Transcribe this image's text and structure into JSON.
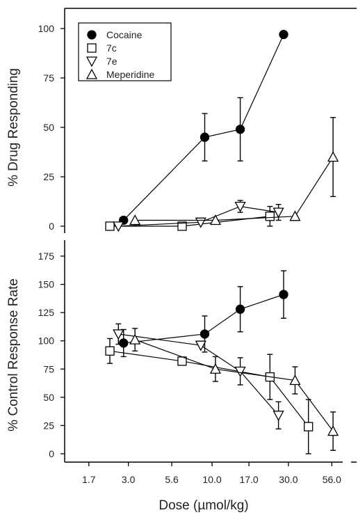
{
  "chart_data": [
    {
      "type": "scatter",
      "panel": "top",
      "ylabel": "% Drug Responding",
      "xlabel": "",
      "xscale": "log",
      "xlim": [
        1.7,
        56.0
      ],
      "ylim": [
        0,
        100
      ],
      "yticks": [
        0,
        25,
        50,
        75,
        100
      ],
      "legend": {
        "placement": "top-left",
        "entries": [
          {
            "name": "Cocaine",
            "marker": "circle",
            "filled": true
          },
          {
            "name": "7c",
            "marker": "square",
            "filled": false
          },
          {
            "name": "7e",
            "marker": "triangle-down",
            "filled": false
          },
          {
            "name": "Meperidine",
            "marker": "triangle-up",
            "filled": false
          }
        ]
      },
      "series": [
        {
          "name": "Cocaine",
          "marker": "circle",
          "filled": true,
          "points": [
            {
              "x": 2.8,
              "y": 3
            },
            {
              "x": 9.0,
              "y": 45,
              "err": 12
            },
            {
              "x": 15.0,
              "y": 49,
              "err": 16
            },
            {
              "x": 28.0,
              "y": 97
            }
          ]
        },
        {
          "name": "7c",
          "marker": "square",
          "filled": false,
          "points": [
            {
              "x": 2.3,
              "y": 0
            },
            {
              "x": 6.5,
              "y": 0
            },
            {
              "x": 23.0,
              "y": 5,
              "err": 5
            }
          ]
        },
        {
          "name": "7e",
          "marker": "triangle-down",
          "filled": false,
          "points": [
            {
              "x": 2.6,
              "y": 0
            },
            {
              "x": 8.5,
              "y": 2
            },
            {
              "x": 15.0,
              "y": 10,
              "err": 3
            },
            {
              "x": 26.0,
              "y": 7,
              "err": 4
            }
          ]
        },
        {
          "name": "Meperidine",
          "marker": "triangle-up",
          "filled": false,
          "points": [
            {
              "x": 3.3,
              "y": 3
            },
            {
              "x": 10.5,
              "y": 3
            },
            {
              "x": 33.0,
              "y": 5
            },
            {
              "x": 57.0,
              "y": 35,
              "err": 20
            }
          ]
        }
      ]
    },
    {
      "type": "scatter",
      "panel": "bottom",
      "ylabel": "% Control Response Rate",
      "xlabel": "Dose (µmol/kg)",
      "xscale": "log",
      "xlim": [
        1.7,
        56.0
      ],
      "ylim": [
        0,
        175
      ],
      "yticks": [
        0,
        25,
        50,
        75,
        100,
        125,
        150,
        175
      ],
      "xticks": [
        {
          "v": 1.7,
          "label": "1.7"
        },
        {
          "v": 3.0,
          "label": "3.0"
        },
        {
          "v": 5.6,
          "label": "5.6"
        },
        {
          "v": 10.0,
          "label": "10.0"
        },
        {
          "v": 17.0,
          "label": "17.0"
        },
        {
          "v": 30.0,
          "label": "30.0"
        },
        {
          "v": 56.0,
          "label": "56.0"
        }
      ],
      "series": [
        {
          "name": "Cocaine",
          "marker": "circle",
          "filled": true,
          "points": [
            {
              "x": 2.8,
              "y": 98,
              "err": 12
            },
            {
              "x": 9.0,
              "y": 106,
              "err": 16
            },
            {
              "x": 15.0,
              "y": 128,
              "err": 20
            },
            {
              "x": 28.0,
              "y": 141,
              "err": 21
            }
          ]
        },
        {
          "name": "7c",
          "marker": "square",
          "filled": false,
          "points": [
            {
              "x": 2.3,
              "y": 91,
              "err": 11
            },
            {
              "x": 6.5,
              "y": 82
            },
            {
              "x": 23.0,
              "y": 68,
              "err": 20
            },
            {
              "x": 40.0,
              "y": 24,
              "err": 24
            }
          ]
        },
        {
          "name": "7e",
          "marker": "triangle-down",
          "filled": false,
          "points": [
            {
              "x": 2.6,
              "y": 106,
              "err": 9
            },
            {
              "x": 8.5,
              "y": 96
            },
            {
              "x": 15.0,
              "y": 73,
              "err": 12
            },
            {
              "x": 26.0,
              "y": 34,
              "err": 12
            }
          ]
        },
        {
          "name": "Meperidine",
          "marker": "triangle-up",
          "filled": false,
          "points": [
            {
              "x": 3.3,
              "y": 101,
              "err": 10
            },
            {
              "x": 10.5,
              "y": 75,
              "err": 11
            },
            {
              "x": 33.0,
              "y": 65,
              "err": 12
            },
            {
              "x": 57.0,
              "y": 20,
              "err": 17
            }
          ]
        }
      ]
    }
  ]
}
